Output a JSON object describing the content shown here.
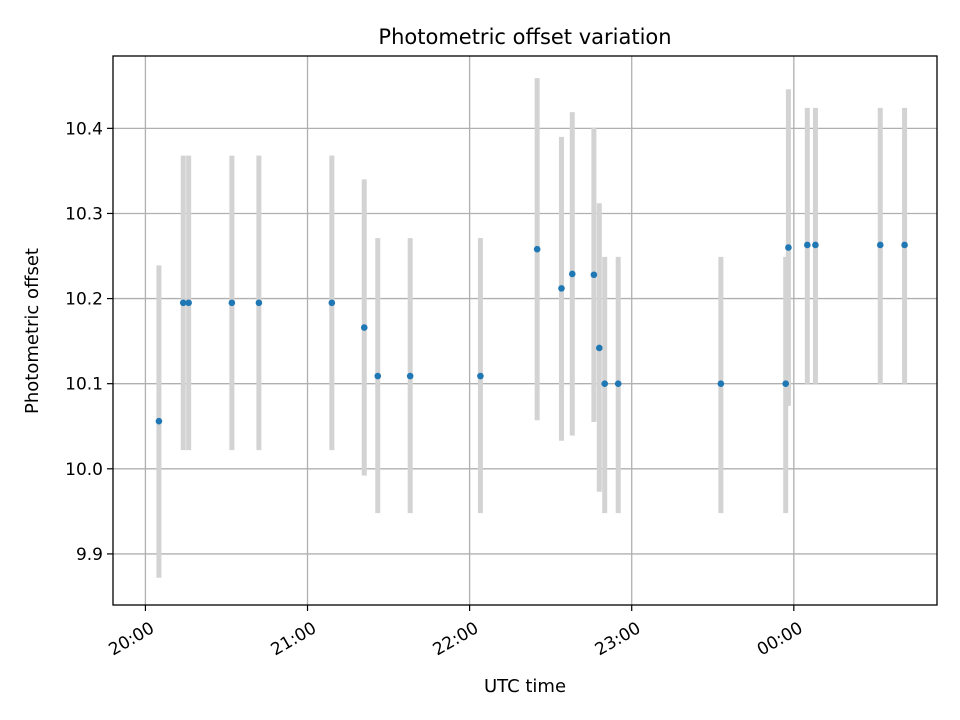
{
  "chart_data": {
    "type": "scatter",
    "title": "Photometric offset variation",
    "xlabel": "UTC time",
    "ylabel": "Photometric offset",
    "x_ticks": [
      "20:00",
      "21:00",
      "22:00",
      "23:00",
      "00:00"
    ],
    "y_ticks": [
      "9.9",
      "10.0",
      "10.1",
      "10.2",
      "10.3",
      "10.4"
    ],
    "grid": true,
    "colors": {
      "point": "#1f77b4",
      "errorbar": "#d3d3d3",
      "grid": "#b0b0b0"
    },
    "points": [
      {
        "time": "20:05",
        "value": 10.056,
        "err_low": 9.872,
        "err_high": 10.239
      },
      {
        "time": "20:14",
        "value": 10.195,
        "err_low": 10.022,
        "err_high": 10.368
      },
      {
        "time": "20:16",
        "value": 10.195,
        "err_low": 10.022,
        "err_high": 10.368
      },
      {
        "time": "20:32",
        "value": 10.195,
        "err_low": 10.022,
        "err_high": 10.368
      },
      {
        "time": "20:42",
        "value": 10.195,
        "err_low": 10.022,
        "err_high": 10.368
      },
      {
        "time": "21:09",
        "value": 10.195,
        "err_low": 10.022,
        "err_high": 10.368
      },
      {
        "time": "21:21",
        "value": 10.166,
        "err_low": 9.992,
        "err_high": 10.34
      },
      {
        "time": "21:26",
        "value": 10.109,
        "err_low": 9.948,
        "err_high": 10.271
      },
      {
        "time": "21:38",
        "value": 10.109,
        "err_low": 9.948,
        "err_high": 10.271
      },
      {
        "time": "22:04",
        "value": 10.109,
        "err_low": 9.948,
        "err_high": 10.271
      },
      {
        "time": "22:25",
        "value": 10.258,
        "err_low": 10.057,
        "err_high": 10.459
      },
      {
        "time": "22:34",
        "value": 10.212,
        "err_low": 10.033,
        "err_high": 10.39
      },
      {
        "time": "22:38",
        "value": 10.229,
        "err_low": 10.039,
        "err_high": 10.419
      },
      {
        "time": "22:46",
        "value": 10.228,
        "err_low": 10.055,
        "err_high": 10.401
      },
      {
        "time": "22:48",
        "value": 10.142,
        "err_low": 9.973,
        "err_high": 10.312
      },
      {
        "time": "22:50",
        "value": 10.1,
        "err_low": 9.948,
        "err_high": 10.249
      },
      {
        "time": "22:55",
        "value": 10.1,
        "err_low": 9.948,
        "err_high": 10.249
      },
      {
        "time": "23:33",
        "value": 10.1,
        "err_low": 9.948,
        "err_high": 10.249
      },
      {
        "time": "23:57",
        "value": 10.1,
        "err_low": 9.948,
        "err_high": 10.249
      },
      {
        "time": "23:58",
        "value": 10.26,
        "err_low": 10.074,
        "err_high": 10.446
      },
      {
        "time": "00:05",
        "value": 10.263,
        "err_low": 10.1,
        "err_high": 10.424
      },
      {
        "time": "00:08",
        "value": 10.263,
        "err_low": 10.1,
        "err_high": 10.424
      },
      {
        "time": "00:32",
        "value": 10.263,
        "err_low": 10.1,
        "err_high": 10.424
      },
      {
        "time": "00:41",
        "value": 10.263,
        "err_low": 10.1,
        "err_high": 10.424
      }
    ]
  }
}
